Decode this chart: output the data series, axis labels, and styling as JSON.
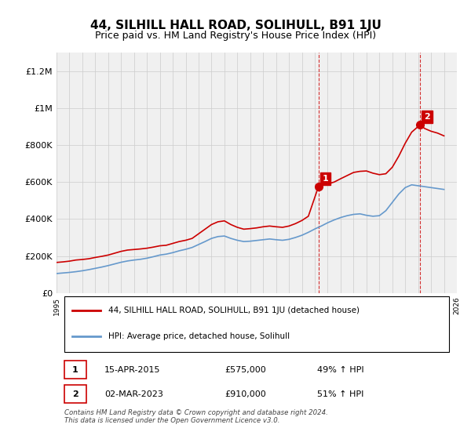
{
  "title": "44, SILHILL HALL ROAD, SOLIHULL, B91 1JU",
  "subtitle": "Price paid vs. HM Land Registry's House Price Index (HPI)",
  "title_fontsize": 11,
  "subtitle_fontsize": 9,
  "ylabel": "",
  "background_color": "#ffffff",
  "grid_color": "#cccccc",
  "plot_bg": "#f0f0f0",
  "red_line_color": "#cc0000",
  "blue_line_color": "#6699cc",
  "marker1_color": "#cc0000",
  "marker2_color": "#cc0000",
  "dashed_vline_color": "#cc0000",
  "sale1_x": 2015.28,
  "sale1_y": 575000,
  "sale2_x": 2023.16,
  "sale2_y": 910000,
  "legend_label_red": "44, SILHILL HALL ROAD, SOLIHULL, B91 1JU (detached house)",
  "legend_label_blue": "HPI: Average price, detached house, Solihull",
  "annotation1_label": "1",
  "annotation2_label": "2",
  "table_row1": [
    "1",
    "15-APR-2015",
    "£575,000",
    "49% ↑ HPI"
  ],
  "table_row2": [
    "2",
    "02-MAR-2023",
    "£910,000",
    "51% ↑ HPI"
  ],
  "footnote": "Contains HM Land Registry data © Crown copyright and database right 2024.\nThis data is licensed under the Open Government Licence v3.0.",
  "ylim": [
    0,
    1300000
  ],
  "yticks": [
    0,
    200000,
    400000,
    600000,
    800000,
    1000000,
    1200000
  ],
  "ytick_labels": [
    "£0",
    "£200K",
    "£400K",
    "£600K",
    "£800K",
    "£1M",
    "£1.2M"
  ],
  "xmin": 1995,
  "xmax": 2026,
  "xticks": [
    1995,
    1996,
    1997,
    1998,
    1999,
    2000,
    2001,
    2002,
    2003,
    2004,
    2005,
    2006,
    2007,
    2008,
    2009,
    2010,
    2011,
    2012,
    2013,
    2014,
    2015,
    2016,
    2017,
    2018,
    2019,
    2020,
    2021,
    2022,
    2023,
    2024,
    2025,
    2026
  ],
  "red_x": [
    1995.0,
    1995.5,
    1996.0,
    1996.5,
    1997.0,
    1997.5,
    1998.0,
    1998.5,
    1999.0,
    1999.5,
    2000.0,
    2000.5,
    2001.0,
    2001.5,
    2002.0,
    2002.5,
    2003.0,
    2003.5,
    2004.0,
    2004.5,
    2005.0,
    2005.5,
    2006.0,
    2006.5,
    2007.0,
    2007.5,
    2008.0,
    2008.5,
    2009.0,
    2009.5,
    2010.0,
    2010.5,
    2011.0,
    2011.5,
    2012.0,
    2012.5,
    2013.0,
    2013.5,
    2014.0,
    2014.5,
    2015.28,
    2016.0,
    2016.5,
    2017.0,
    2017.5,
    2018.0,
    2018.5,
    2019.0,
    2019.5,
    2020.0,
    2020.5,
    2021.0,
    2021.5,
    2022.0,
    2022.5,
    2023.16,
    2023.5,
    2024.0,
    2024.5,
    2025.0
  ],
  "red_y": [
    165000,
    168000,
    172000,
    178000,
    181000,
    185000,
    192000,
    198000,
    205000,
    215000,
    225000,
    232000,
    235000,
    238000,
    242000,
    248000,
    255000,
    258000,
    268000,
    278000,
    285000,
    295000,
    320000,
    345000,
    370000,
    385000,
    390000,
    370000,
    355000,
    345000,
    348000,
    352000,
    358000,
    362000,
    358000,
    355000,
    362000,
    375000,
    392000,
    415000,
    575000,
    590000,
    600000,
    618000,
    635000,
    652000,
    658000,
    660000,
    648000,
    640000,
    645000,
    680000,
    740000,
    810000,
    870000,
    910000,
    890000,
    875000,
    865000,
    850000
  ],
  "blue_x": [
    1995.0,
    1995.5,
    1996.0,
    1996.5,
    1997.0,
    1997.5,
    1998.0,
    1998.5,
    1999.0,
    1999.5,
    2000.0,
    2000.5,
    2001.0,
    2001.5,
    2002.0,
    2002.5,
    2003.0,
    2003.5,
    2004.0,
    2004.5,
    2005.0,
    2005.5,
    2006.0,
    2006.5,
    2007.0,
    2007.5,
    2008.0,
    2008.5,
    2009.0,
    2009.5,
    2010.0,
    2010.5,
    2011.0,
    2011.5,
    2012.0,
    2012.5,
    2013.0,
    2013.5,
    2014.0,
    2014.5,
    2015.0,
    2015.5,
    2016.0,
    2016.5,
    2017.0,
    2017.5,
    2018.0,
    2018.5,
    2019.0,
    2019.5,
    2020.0,
    2020.5,
    2021.0,
    2021.5,
    2022.0,
    2022.5,
    2023.0,
    2023.5,
    2024.0,
    2024.5,
    2025.0
  ],
  "blue_y": [
    105000,
    108000,
    111000,
    115000,
    120000,
    126000,
    133000,
    140000,
    148000,
    157000,
    166000,
    173000,
    178000,
    182000,
    188000,
    196000,
    205000,
    210000,
    218000,
    228000,
    236000,
    246000,
    262000,
    278000,
    295000,
    305000,
    308000,
    295000,
    285000,
    278000,
    280000,
    284000,
    288000,
    292000,
    288000,
    285000,
    290000,
    300000,
    312000,
    328000,
    346000,
    362000,
    380000,
    395000,
    408000,
    418000,
    425000,
    428000,
    420000,
    415000,
    418000,
    445000,
    490000,
    535000,
    570000,
    585000,
    580000,
    575000,
    570000,
    565000,
    560000
  ]
}
